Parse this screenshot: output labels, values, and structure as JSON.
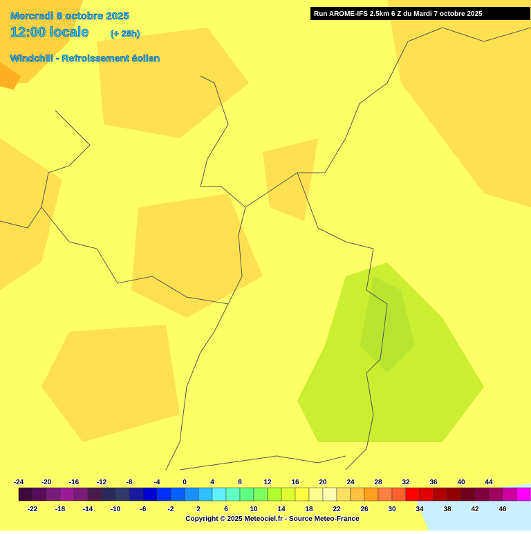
{
  "header": {
    "date": "Mercredi 8 octobre 2025",
    "time": "12:00 locale",
    "lead": "(+ 28h)",
    "parameter": "Windchill - Refroissement éolien",
    "run": "Run AROME-IFS 2.5km 6 Z du Mardi 7 octobre 2025"
  },
  "legend": {
    "ticks_top": [
      -24,
      -20,
      -16,
      -12,
      -8,
      -4,
      0,
      4,
      8,
      12,
      16,
      20,
      24,
      28,
      32,
      36,
      40,
      44
    ],
    "ticks_bottom": [
      -22,
      -18,
      -14,
      -10,
      -6,
      -2,
      2,
      6,
      10,
      14,
      18,
      22,
      26,
      30,
      34,
      38,
      42,
      46
    ],
    "colors": [
      "#3a0a3a",
      "#5a0a5a",
      "#7a1a7a",
      "#9a1a9a",
      "#7a1a7a",
      "#4a1a4a",
      "#2a2a5a",
      "#303a6a",
      "#1a1aa0",
      "#0000d0",
      "#0030ff",
      "#0060ff",
      "#1a90ff",
      "#30c0ff",
      "#60f0ff",
      "#60ffc0",
      "#60ff80",
      "#80ff60",
      "#b0ff30",
      "#e0ff30",
      "#ffff40",
      "#ffff90",
      "#ffffb0",
      "#ffe060",
      "#ffc040",
      "#ffa020",
      "#ff8040",
      "#ff6030",
      "#ff0000",
      "#e00000",
      "#b00000",
      "#900000",
      "#700020",
      "#800040",
      "#a00060",
      "#d000a0",
      "#ff00ff",
      "#ff60ff"
    ]
  },
  "footer": {
    "copyright": "Copyright © 2025 Meteociel.fr - Source Meteo-France"
  }
}
